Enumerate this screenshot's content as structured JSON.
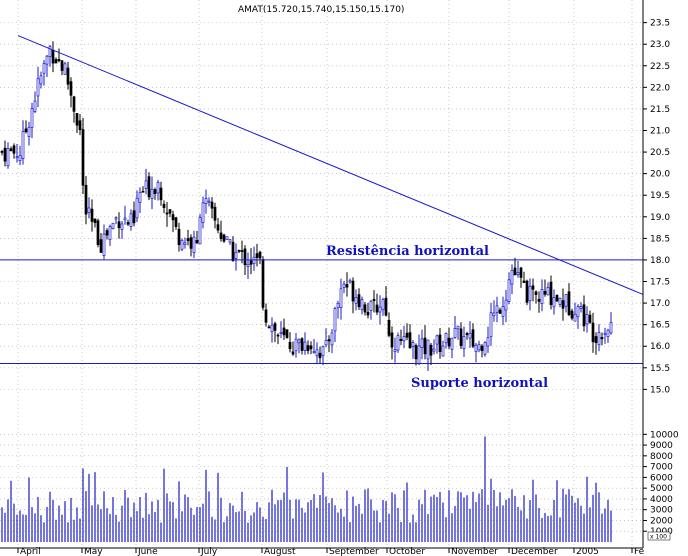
{
  "chart_data": {
    "type": "candlestick",
    "title": "AMAT(15.720,15.740,15.150,15.170)",
    "price_axis": {
      "ticks": [
        "15.0",
        "15.5",
        "16.0",
        "16.5",
        "17.0",
        "17.5",
        "18.0",
        "18.5",
        "19.0",
        "19.5",
        "20.0",
        "20.5",
        "21.0",
        "21.5",
        "22.0",
        "22.5",
        "23.0",
        "23.5"
      ],
      "min": 14.8,
      "max": 23.7,
      "grid": true
    },
    "volume_axis": {
      "ticks": [
        "1000",
        "2000",
        "3000",
        "4000",
        "5000",
        "6000",
        "7000",
        "8000",
        "9000",
        "10000"
      ],
      "min": 0,
      "max": 10400,
      "unit_label": "x 100"
    },
    "x_axis": {
      "labels": [
        "April",
        "May",
        "June",
        "July",
        "August",
        "September",
        "October",
        "November",
        "December",
        "2005",
        "Fe"
      ]
    },
    "price_path": [
      [
        "April",
        20.5
      ],
      [
        "April",
        21.8
      ],
      [
        "April",
        22.9
      ],
      [
        "April",
        22.4
      ],
      [
        "April",
        21.0
      ],
      [
        "May",
        19.2
      ],
      [
        "May",
        18.4
      ],
      [
        "May",
        19.0
      ],
      [
        "May",
        18.8
      ],
      [
        "June",
        19.5
      ],
      [
        "June",
        19.8
      ],
      [
        "June",
        18.6
      ],
      [
        "June",
        18.3
      ],
      [
        "July",
        19.5
      ],
      [
        "July",
        18.2
      ],
      [
        "July",
        17.9
      ],
      [
        "August",
        16.8
      ],
      [
        "August",
        16.2
      ],
      [
        "August",
        16.0
      ],
      [
        "August",
        16.1
      ],
      [
        "August",
        15.8
      ],
      [
        "September",
        16.2
      ],
      [
        "September",
        17.5
      ],
      [
        "September",
        17.2
      ],
      [
        "September",
        16.8
      ],
      [
        "September",
        17.1
      ],
      [
        "October",
        16.2
      ],
      [
        "October",
        15.9
      ],
      [
        "October",
        16.1
      ],
      [
        "November",
        16.3
      ],
      [
        "November",
        16.0
      ],
      [
        "November",
        17.3
      ],
      [
        "December",
        17.8
      ],
      [
        "December",
        17.1
      ],
      [
        "December",
        17.2
      ],
      [
        "December",
        16.9
      ],
      [
        "2005",
        17.0
      ],
      [
        "2005",
        16.3
      ],
      [
        "2005",
        16.5
      ],
      [
        "2005",
        15.17
      ]
    ],
    "volume_max_value": 9800,
    "lines": [
      {
        "kind": "trend",
        "from": [
          "April",
          23.2
        ],
        "to": [
          "Fe",
          17.2
        ]
      },
      {
        "kind": "horizontal",
        "value": 18.0
      },
      {
        "kind": "horizontal",
        "value": 15.6
      }
    ],
    "annotations": {
      "resistance": "Resistência horizontal",
      "support": "Suporte horizontal"
    },
    "colors": {
      "up": "#1a1acc",
      "down": "#000000",
      "line": "#1a1acc",
      "grid": "#a8a8a8"
    }
  }
}
